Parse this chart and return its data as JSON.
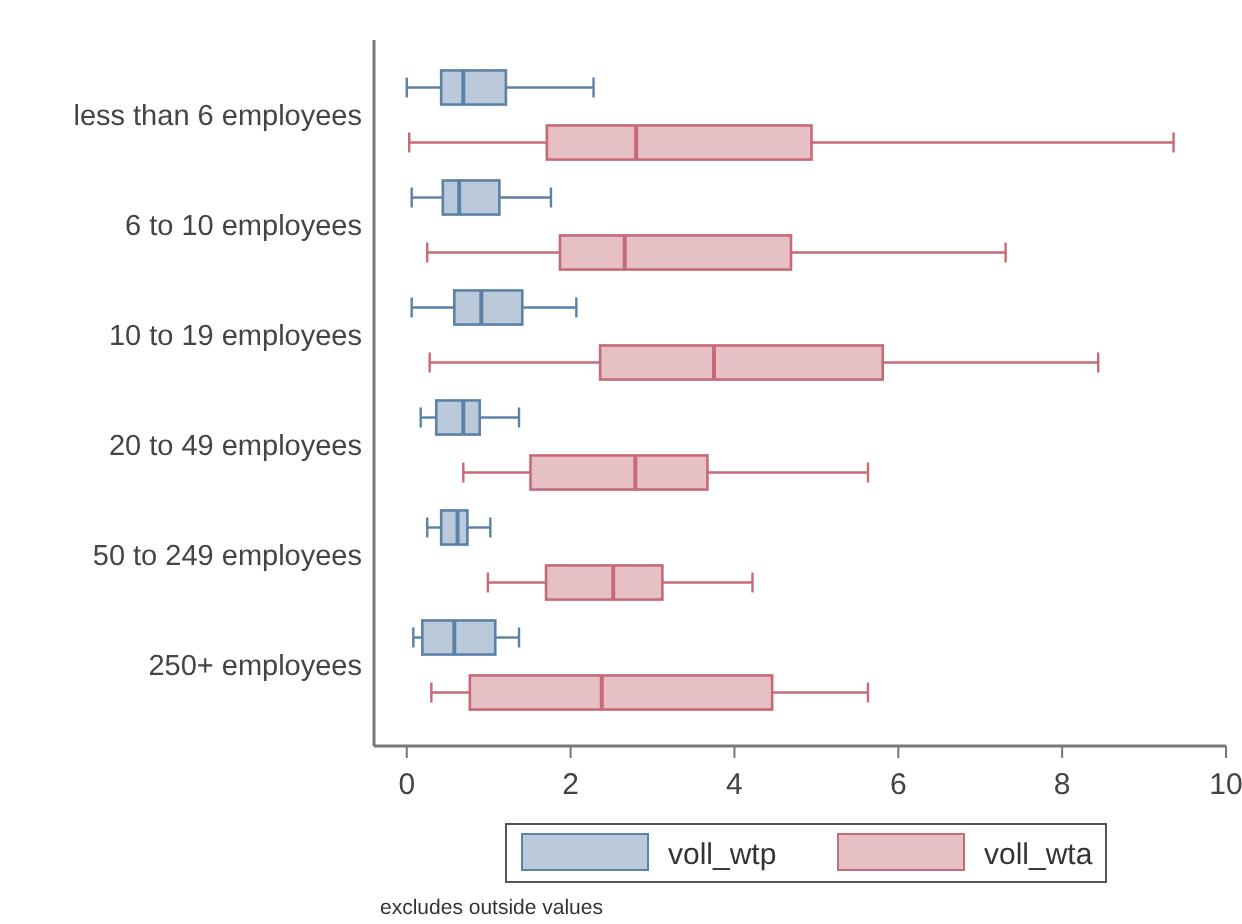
{
  "chart_data": {
    "type": "box",
    "orientation": "horizontal",
    "categories": [
      "less than 6 employees",
      "6 to 10 employees",
      "10 to 19 employees",
      "20 to 49 employees",
      "50 to 249 employees",
      "250+ employees"
    ],
    "series": [
      {
        "name": "voll_wtp",
        "color": "#5b81a6",
        "boxes": [
          {
            "low": 0,
            "q1": 0.42,
            "median": 0.69,
            "q3": 1.21,
            "high": 2.28
          },
          {
            "low": 0.06,
            "q1": 0.44,
            "median": 0.64,
            "q3": 1.13,
            "high": 1.76
          },
          {
            "low": 0.06,
            "q1": 0.58,
            "median": 0.91,
            "q3": 1.41,
            "high": 2.07
          },
          {
            "low": 0.17,
            "q1": 0.36,
            "median": 0.69,
            "q3": 0.89,
            "high": 1.37
          },
          {
            "low": 0.25,
            "q1": 0.42,
            "median": 0.62,
            "q3": 0.74,
            "high": 1.02
          },
          {
            "low": 0.08,
            "q1": 0.19,
            "median": 0.58,
            "q3": 1.08,
            "high": 1.37
          }
        ]
      },
      {
        "name": "voll_wta",
        "color": "#c66a75",
        "boxes": [
          {
            "low": 0.03,
            "q1": 1.71,
            "median": 2.8,
            "q3": 4.94,
            "high": 9.36
          },
          {
            "low": 0.25,
            "q1": 1.87,
            "median": 2.66,
            "q3": 4.69,
            "high": 7.31
          },
          {
            "low": 0.28,
            "q1": 2.36,
            "median": 3.75,
            "q3": 5.81,
            "high": 8.44
          },
          {
            "low": 0.69,
            "q1": 1.51,
            "median": 2.79,
            "q3": 3.67,
            "high": 5.63
          },
          {
            "low": 0.99,
            "q1": 1.7,
            "median": 2.52,
            "q3": 3.12,
            "high": 4.22
          },
          {
            "low": 0.3,
            "q1": 0.77,
            "median": 2.38,
            "q3": 4.46,
            "high": 5.63
          }
        ]
      }
    ],
    "xlim": [
      -0.4,
      10
    ],
    "xticks": [
      0,
      2,
      4,
      6,
      8,
      10
    ],
    "grid": false,
    "legend": "bottom",
    "annotations": [
      "excludes outside values"
    ]
  }
}
